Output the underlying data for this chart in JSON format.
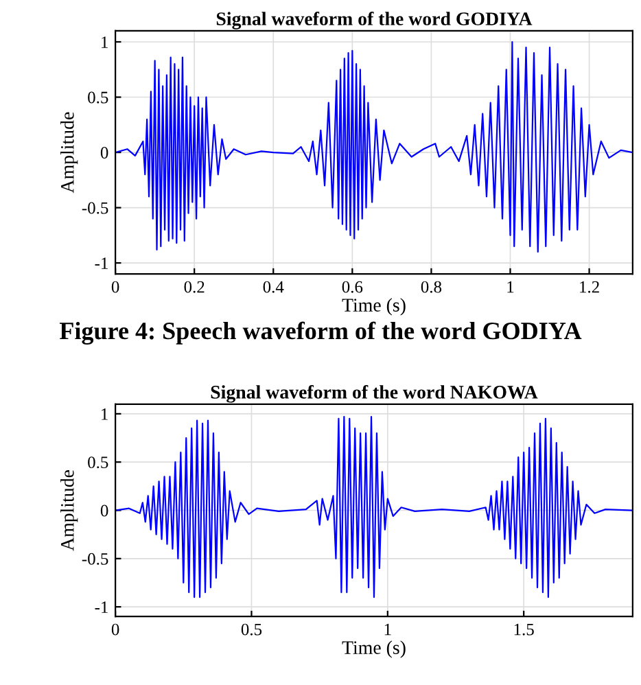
{
  "chart_data": [
    {
      "type": "line",
      "title": "Signal waveform of the word GODIYA",
      "xlabel": "Time (s)",
      "ylabel": "Amplitude",
      "annotations": [
        "Figure 4: Speech waveform of the word GODIYA"
      ],
      "xlim": [
        0,
        1.31
      ],
      "ylim": [
        -1.1,
        1.1
      ],
      "xticks": [
        0,
        0.2,
        0.4,
        0.6,
        0.8,
        1,
        1.2
      ],
      "yticks": [
        -1,
        -0.5,
        0,
        0.5,
        1
      ],
      "grid": true,
      "series": [
        {
          "color": "#0000ff",
          "x": [
            0,
            0.03,
            0.05,
            0.07,
            0.075,
            0.08,
            0.085,
            0.09,
            0.095,
            0.1,
            0.105,
            0.11,
            0.115,
            0.12,
            0.125,
            0.13,
            0.135,
            0.14,
            0.145,
            0.15,
            0.155,
            0.16,
            0.165,
            0.17,
            0.175,
            0.18,
            0.185,
            0.19,
            0.195,
            0.2,
            0.205,
            0.21,
            0.215,
            0.22,
            0.225,
            0.23,
            0.24,
            0.25,
            0.26,
            0.27,
            0.28,
            0.3,
            0.33,
            0.37,
            0.4,
            0.45,
            0.47,
            0.49,
            0.5,
            0.51,
            0.52,
            0.53,
            0.54,
            0.55,
            0.56,
            0.565,
            0.57,
            0.575,
            0.58,
            0.585,
            0.59,
            0.595,
            0.6,
            0.605,
            0.61,
            0.615,
            0.62,
            0.625,
            0.63,
            0.635,
            0.64,
            0.65,
            0.66,
            0.67,
            0.68,
            0.7,
            0.72,
            0.75,
            0.78,
            0.81,
            0.82,
            0.85,
            0.87,
            0.89,
            0.9,
            0.91,
            0.92,
            0.93,
            0.94,
            0.95,
            0.96,
            0.97,
            0.98,
            0.99,
            1.0,
            1.005,
            1.01,
            1.02,
            1.03,
            1.04,
            1.05,
            1.06,
            1.07,
            1.08,
            1.09,
            1.1,
            1.11,
            1.12,
            1.13,
            1.14,
            1.15,
            1.16,
            1.17,
            1.18,
            1.19,
            1.2,
            1.21,
            1.23,
            1.25,
            1.28,
            1.31
          ],
          "values": [
            0,
            0.03,
            -0.03,
            0.1,
            -0.2,
            0.3,
            -0.4,
            0.55,
            -0.6,
            0.83,
            -0.88,
            0.75,
            -0.85,
            0.6,
            -0.7,
            0.7,
            -0.8,
            0.86,
            -0.78,
            0.8,
            -0.82,
            0.75,
            -0.7,
            0.86,
            -0.8,
            0.6,
            -0.55,
            0.5,
            -0.45,
            0.42,
            -0.6,
            0.5,
            -0.4,
            0.4,
            -0.5,
            0.5,
            -0.3,
            0.25,
            -0.2,
            0.12,
            -0.06,
            0.03,
            -0.02,
            0.01,
            0,
            -0.01,
            0.05,
            -0.08,
            0.1,
            -0.2,
            0.2,
            -0.3,
            0.45,
            -0.5,
            0.65,
            -0.6,
            0.75,
            -0.65,
            0.85,
            -0.7,
            0.9,
            -0.75,
            0.92,
            -0.78,
            0.8,
            -0.7,
            0.75,
            -0.6,
            0.6,
            -0.5,
            0.45,
            -0.45,
            0.3,
            -0.25,
            0.2,
            -0.1,
            0.08,
            -0.04,
            0.03,
            0.08,
            -0.04,
            0.05,
            -0.08,
            0.15,
            -0.2,
            0.25,
            -0.3,
            0.35,
            -0.4,
            0.45,
            -0.5,
            0.6,
            -0.6,
            0.75,
            -0.75,
            1.0,
            -0.85,
            0.85,
            -0.7,
            0.95,
            -0.85,
            0.9,
            -0.9,
            0.7,
            -0.85,
            0.95,
            -0.75,
            0.8,
            -0.8,
            0.75,
            -0.7,
            0.6,
            -0.7,
            0.4,
            -0.4,
            0.25,
            -0.2,
            0.1,
            -0.05,
            0.02,
            0
          ]
        }
      ]
    },
    {
      "type": "line",
      "title": "Signal waveform of the word NAKOWA",
      "xlabel": "Time (s)",
      "ylabel": "Amplitude",
      "xlim": [
        0,
        1.9
      ],
      "ylim": [
        -1.1,
        1.1
      ],
      "xticks": [
        0,
        0.5,
        1,
        1.5
      ],
      "yticks": [
        -1,
        -0.5,
        0,
        0.5,
        1
      ],
      "grid": true,
      "series": [
        {
          "color": "#0000ff",
          "x": [
            0,
            0.05,
            0.09,
            0.1,
            0.11,
            0.12,
            0.13,
            0.14,
            0.15,
            0.16,
            0.17,
            0.18,
            0.19,
            0.2,
            0.21,
            0.22,
            0.23,
            0.24,
            0.25,
            0.26,
            0.27,
            0.28,
            0.29,
            0.3,
            0.31,
            0.32,
            0.33,
            0.34,
            0.35,
            0.36,
            0.37,
            0.38,
            0.39,
            0.4,
            0.41,
            0.42,
            0.44,
            0.46,
            0.49,
            0.52,
            0.6,
            0.7,
            0.74,
            0.75,
            0.76,
            0.78,
            0.8,
            0.81,
            0.82,
            0.83,
            0.84,
            0.85,
            0.86,
            0.87,
            0.88,
            0.89,
            0.9,
            0.91,
            0.92,
            0.93,
            0.94,
            0.95,
            0.96,
            0.97,
            0.98,
            0.99,
            1.0,
            1.02,
            1.05,
            1.1,
            1.2,
            1.3,
            1.36,
            1.37,
            1.38,
            1.39,
            1.4,
            1.41,
            1.42,
            1.43,
            1.44,
            1.45,
            1.46,
            1.47,
            1.48,
            1.49,
            1.5,
            1.51,
            1.52,
            1.53,
            1.54,
            1.55,
            1.56,
            1.57,
            1.58,
            1.59,
            1.6,
            1.61,
            1.62,
            1.63,
            1.64,
            1.65,
            1.66,
            1.67,
            1.68,
            1.69,
            1.7,
            1.71,
            1.73,
            1.76,
            1.8,
            1.9
          ],
          "values": [
            0,
            0.02,
            -0.03,
            0.08,
            -0.12,
            0.15,
            -0.2,
            0.25,
            -0.25,
            0.3,
            -0.3,
            0.35,
            -0.35,
            0.35,
            -0.4,
            0.5,
            -0.5,
            0.6,
            -0.75,
            0.75,
            -0.85,
            0.85,
            -0.9,
            0.93,
            -0.9,
            0.9,
            -0.85,
            0.93,
            -0.8,
            0.8,
            -0.7,
            0.6,
            -0.55,
            0.4,
            -0.3,
            0.2,
            -0.12,
            0.08,
            -0.04,
            0.02,
            -0.01,
            0.01,
            0.1,
            -0.15,
            0.12,
            -0.1,
            0.15,
            -0.5,
            0.95,
            -0.85,
            0.97,
            -0.85,
            0.95,
            -0.7,
            0.85,
            -0.6,
            0.8,
            -0.7,
            0.8,
            -0.8,
            0.97,
            -0.9,
            0.8,
            -0.6,
            0.4,
            -0.2,
            0.12,
            -0.06,
            0.03,
            -0.01,
            0.01,
            -0.01,
            0.03,
            -0.1,
            0.15,
            -0.2,
            0.2,
            -0.2,
            0.3,
            -0.3,
            0.3,
            -0.4,
            0.35,
            -0.5,
            0.55,
            -0.55,
            0.6,
            -0.6,
            0.65,
            -0.7,
            0.8,
            -0.8,
            0.9,
            -0.85,
            0.95,
            -0.9,
            0.85,
            -0.75,
            0.7,
            -0.7,
            0.6,
            -0.55,
            0.45,
            -0.45,
            0.3,
            -0.3,
            0.2,
            -0.15,
            0.06,
            -0.03,
            0.01,
            0
          ]
        }
      ]
    }
  ]
}
